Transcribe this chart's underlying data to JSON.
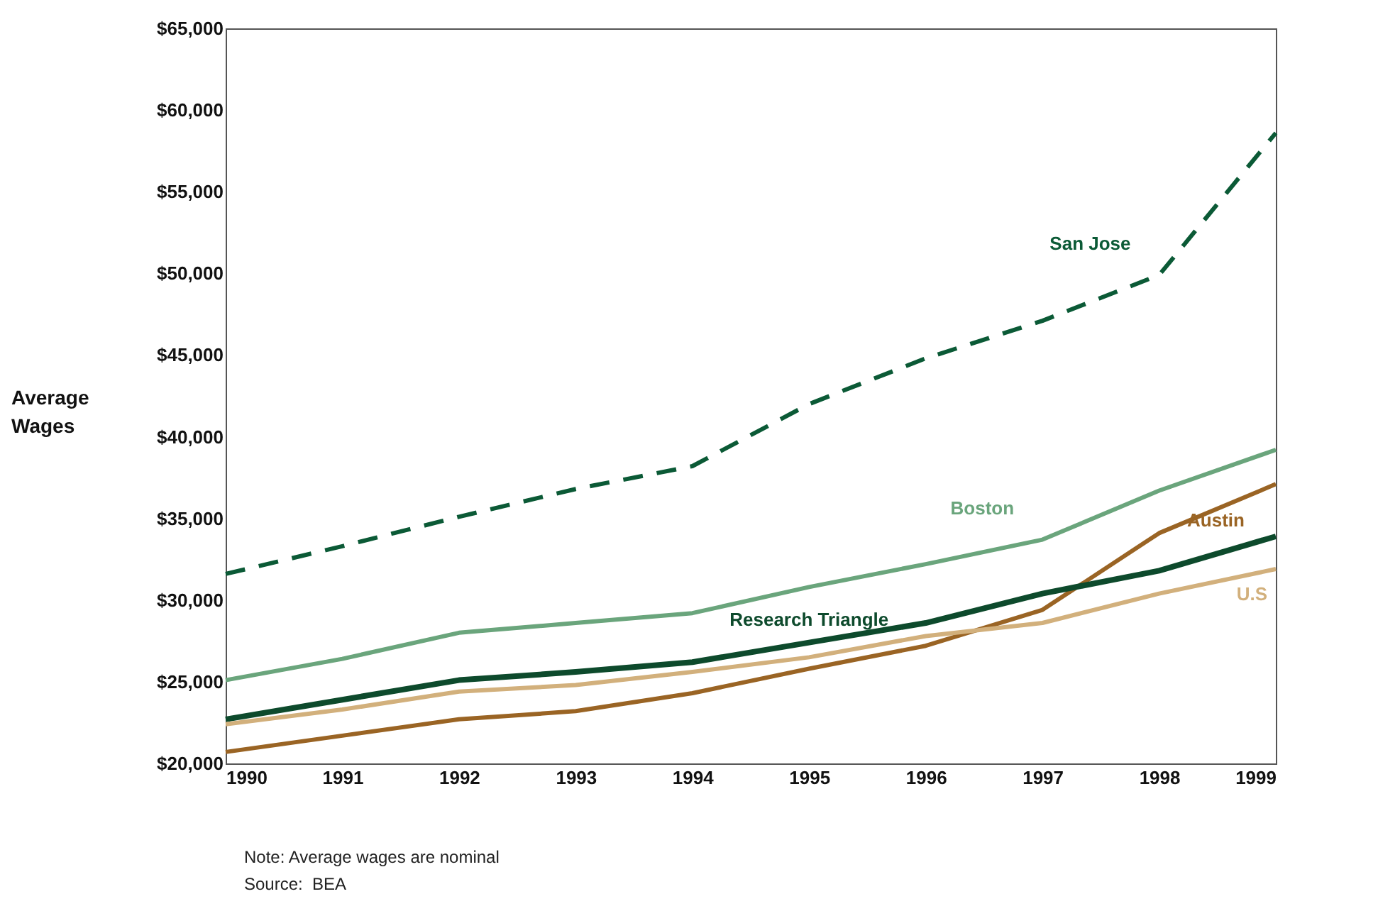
{
  "chart_data": {
    "type": "line",
    "ylabel": "Average Wages",
    "x": [
      1990,
      1991,
      1992,
      1993,
      1994,
      1995,
      1996,
      1997,
      1998,
      1999
    ],
    "xlim": [
      1990,
      1999
    ],
    "xticks": [
      1990,
      1991,
      1992,
      1993,
      1994,
      1995,
      1996,
      1997,
      1998,
      1999
    ],
    "ylim": [
      20000,
      65000
    ],
    "yticks": [
      {
        "value": 20000,
        "label": "$20,000"
      },
      {
        "value": 25000,
        "label": "$25,000"
      },
      {
        "value": 30000,
        "label": "$30,000"
      },
      {
        "value": 35000,
        "label": "$35,000"
      },
      {
        "value": 40000,
        "label": "$40,000"
      },
      {
        "value": 45000,
        "label": "$45,000"
      },
      {
        "value": 50000,
        "label": "$50,000"
      },
      {
        "value": 55000,
        "label": "$55,000"
      },
      {
        "value": 60000,
        "label": "$60,000"
      },
      {
        "value": 65000,
        "label": "$65,000"
      }
    ],
    "grid": false,
    "series": [
      {
        "name": "San Jose",
        "color": "#0b5a36",
        "line_style": "dashed",
        "values": [
          31600,
          33300,
          35100,
          36800,
          38200,
          42000,
          44800,
          47100,
          49900,
          58600
        ]
      },
      {
        "name": "Boston",
        "color": "#6aa57c",
        "values": [
          25100,
          26400,
          28000,
          28600,
          29200,
          30800,
          32200,
          33700,
          36700,
          39200
        ]
      },
      {
        "name": "Austin",
        "color": "#9a6424",
        "values": [
          20700,
          21700,
          22700,
          23200,
          24300,
          25800,
          27200,
          29400,
          34100,
          37100
        ]
      },
      {
        "name": "Research Triangle",
        "color": "#0d4a2c",
        "values": [
          22700,
          23900,
          25100,
          25600,
          26200,
          27400,
          28600,
          30400,
          31800,
          33900
        ]
      },
      {
        "name": "U.S",
        "color": "#d2b07c",
        "values": [
          22400,
          23300,
          24400,
          24800,
          25600,
          26500,
          27800,
          28600,
          30400,
          31900
        ]
      }
    ],
    "annotations": [
      "Note: Average wages are nominal",
      "Source:  BEA"
    ]
  }
}
